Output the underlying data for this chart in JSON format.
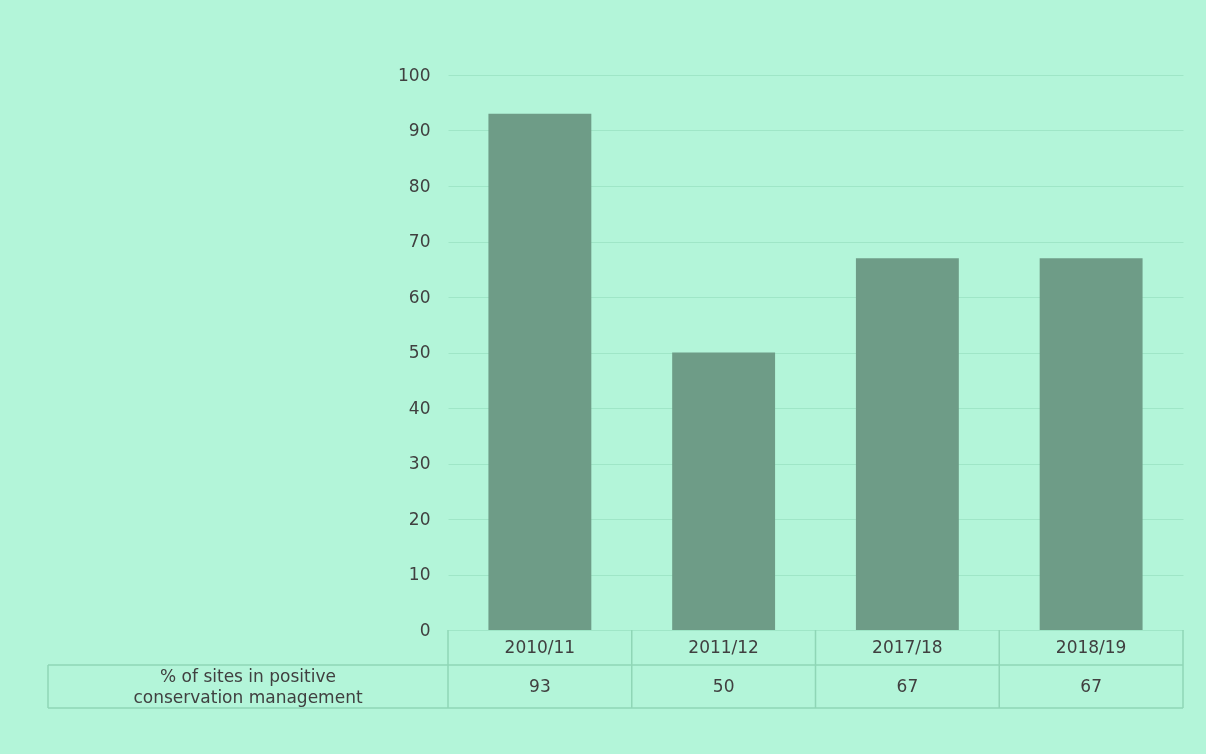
{
  "chart_data": {
    "type": "bar",
    "categories": [
      "2010/11",
      "2011/12",
      "2017/18",
      "2018/19"
    ],
    "series": [
      {
        "name": "% of sites in positive conservation management",
        "color": "#6e9c87",
        "values": [
          93,
          50,
          67,
          67
        ]
      }
    ],
    "ylim": [
      0,
      100
    ],
    "yticks": [
      0,
      10,
      20,
      30,
      40,
      50,
      60,
      70,
      80,
      90,
      100
    ],
    "grid": "y",
    "data_labels": true
  }
}
